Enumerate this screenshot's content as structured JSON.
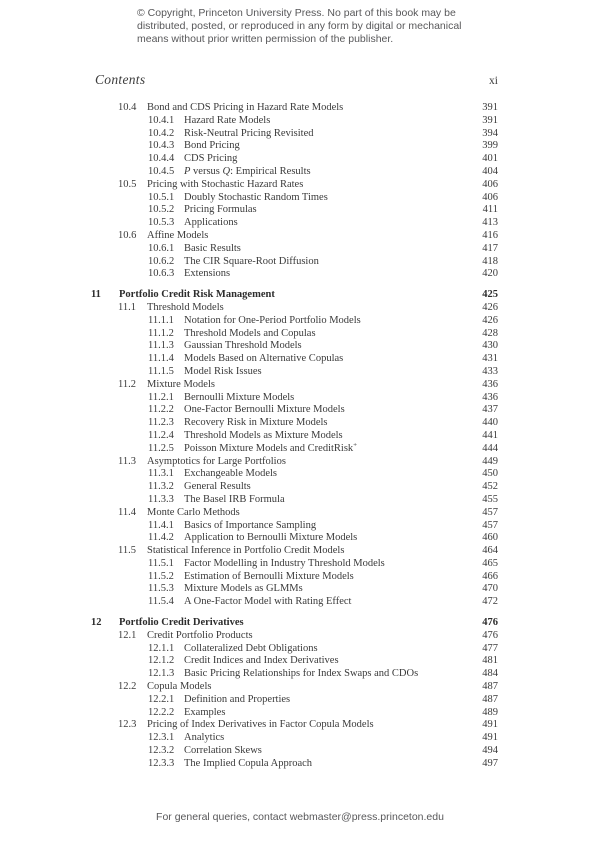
{
  "copyright_notice": "© Copyright, Princeton University Press. No part of this book may be\ndistributed, posted, or reproduced in any form by digital or mechanical\nmeans without prior written permission of the publisher.",
  "header": {
    "title": "Contents",
    "page_number": "xi"
  },
  "footer": {
    "text": "For general queries, contact webmaster@press.princeton.edu"
  },
  "toc": {
    "entries": [
      {
        "level": "section",
        "number": "10.4",
        "title": "Bond and CDS Pricing in Hazard Rate Models",
        "page": "391"
      },
      {
        "level": "subsection",
        "number": "10.4.1",
        "title": "Hazard Rate Models",
        "page": "391"
      },
      {
        "level": "subsection",
        "number": "10.4.2",
        "title": "Risk-Neutral Pricing Revisited",
        "page": "394"
      },
      {
        "level": "subsection",
        "number": "10.4.3",
        "title": "Bond Pricing",
        "page": "399"
      },
      {
        "level": "subsection",
        "number": "10.4.4",
        "title": "CDS Pricing",
        "page": "401"
      },
      {
        "level": "subsection",
        "number": "10.4.5",
        "title": "P versus Q: Empirical Results",
        "page": "404",
        "title_runs": [
          {
            "text": "P",
            "italic": true
          },
          {
            "text": " versus ",
            "italic": false
          },
          {
            "text": "Q",
            "italic": true
          },
          {
            "text": ": Empirical Results",
            "italic": false
          }
        ]
      },
      {
        "level": "section",
        "number": "10.5",
        "title": "Pricing with Stochastic Hazard Rates",
        "page": "406"
      },
      {
        "level": "subsection",
        "number": "10.5.1",
        "title": "Doubly Stochastic Random Times",
        "page": "406"
      },
      {
        "level": "subsection",
        "number": "10.5.2",
        "title": "Pricing Formulas",
        "page": "411"
      },
      {
        "level": "subsection",
        "number": "10.5.3",
        "title": "Applications",
        "page": "413"
      },
      {
        "level": "section",
        "number": "10.6",
        "title": "Affine Models",
        "page": "416"
      },
      {
        "level": "subsection",
        "number": "10.6.1",
        "title": "Basic Results",
        "page": "417"
      },
      {
        "level": "subsection",
        "number": "10.6.2",
        "title": "The CIR Square-Root Diffusion",
        "page": "418"
      },
      {
        "level": "subsection",
        "number": "10.6.3",
        "title": "Extensions",
        "page": "420"
      },
      {
        "level": "chapter",
        "number": "11",
        "title": "Portfolio Credit Risk Management",
        "page": "425",
        "gap_before": true
      },
      {
        "level": "section",
        "number": "11.1",
        "title": "Threshold Models",
        "page": "426"
      },
      {
        "level": "subsection",
        "number": "11.1.1",
        "title": "Notation for One-Period Portfolio Models",
        "page": "426"
      },
      {
        "level": "subsection",
        "number": "11.1.2",
        "title": "Threshold Models and Copulas",
        "page": "428"
      },
      {
        "level": "subsection",
        "number": "11.1.3",
        "title": "Gaussian Threshold Models",
        "page": "430"
      },
      {
        "level": "subsection",
        "number": "11.1.4",
        "title": "Models Based on Alternative Copulas",
        "page": "431"
      },
      {
        "level": "subsection",
        "number": "11.1.5",
        "title": "Model Risk Issues",
        "page": "433"
      },
      {
        "level": "section",
        "number": "11.2",
        "title": "Mixture Models",
        "page": "436"
      },
      {
        "level": "subsection",
        "number": "11.2.1",
        "title": "Bernoulli Mixture Models",
        "page": "436"
      },
      {
        "level": "subsection",
        "number": "11.2.2",
        "title": "One-Factor Bernoulli Mixture Models",
        "page": "437"
      },
      {
        "level": "subsection",
        "number": "11.2.3",
        "title": "Recovery Risk in Mixture Models",
        "page": "440"
      },
      {
        "level": "subsection",
        "number": "11.2.4",
        "title": "Threshold Models as Mixture Models",
        "page": "441"
      },
      {
        "level": "subsection",
        "number": "11.2.5",
        "title": "Poisson Mixture Models and CreditRisk+",
        "page": "444",
        "title_runs": [
          {
            "text": "Poisson Mixture Models and CreditRisk",
            "italic": false
          },
          {
            "text": "+",
            "sup": true
          }
        ]
      },
      {
        "level": "section",
        "number": "11.3",
        "title": "Asymptotics for Large Portfolios",
        "page": "449"
      },
      {
        "level": "subsection",
        "number": "11.3.1",
        "title": "Exchangeable Models",
        "page": "450"
      },
      {
        "level": "subsection",
        "number": "11.3.2",
        "title": "General Results",
        "page": "452"
      },
      {
        "level": "subsection",
        "number": "11.3.3",
        "title": "The Basel IRB Formula",
        "page": "455"
      },
      {
        "level": "section",
        "number": "11.4",
        "title": "Monte Carlo Methods",
        "page": "457"
      },
      {
        "level": "subsection",
        "number": "11.4.1",
        "title": "Basics of Importance Sampling",
        "page": "457"
      },
      {
        "level": "subsection",
        "number": "11.4.2",
        "title": "Application to Bernoulli Mixture Models",
        "page": "460"
      },
      {
        "level": "section",
        "number": "11.5",
        "title": "Statistical Inference in Portfolio Credit Models",
        "page": "464"
      },
      {
        "level": "subsection",
        "number": "11.5.1",
        "title": "Factor Modelling in Industry Threshold Models",
        "page": "465"
      },
      {
        "level": "subsection",
        "number": "11.5.2",
        "title": "Estimation of Bernoulli Mixture Models",
        "page": "466"
      },
      {
        "level": "subsection",
        "number": "11.5.3",
        "title": "Mixture Models as GLMMs",
        "page": "470"
      },
      {
        "level": "subsection",
        "number": "11.5.4",
        "title": "A One-Factor Model with Rating Effect",
        "page": "472"
      },
      {
        "level": "chapter",
        "number": "12",
        "title": "Portfolio Credit Derivatives",
        "page": "476",
        "gap_before": true
      },
      {
        "level": "section",
        "number": "12.1",
        "title": "Credit Portfolio Products",
        "page": "476"
      },
      {
        "level": "subsection",
        "number": "12.1.1",
        "title": "Collateralized Debt Obligations",
        "page": "477"
      },
      {
        "level": "subsection",
        "number": "12.1.2",
        "title": "Credit Indices and Index Derivatives",
        "page": "481"
      },
      {
        "level": "subsection",
        "number": "12.1.3",
        "title": "Basic Pricing Relationships for Index Swaps and CDOs",
        "page": "484"
      },
      {
        "level": "section",
        "number": "12.2",
        "title": "Copula Models",
        "page": "487"
      },
      {
        "level": "subsection",
        "number": "12.2.1",
        "title": "Definition and Properties",
        "page": "487"
      },
      {
        "level": "subsection",
        "number": "12.2.2",
        "title": "Examples",
        "page": "489"
      },
      {
        "level": "section",
        "number": "12.3",
        "title": "Pricing of Index Derivatives in Factor Copula Models",
        "page": "491"
      },
      {
        "level": "subsection",
        "number": "12.3.1",
        "title": "Analytics",
        "page": "491"
      },
      {
        "level": "subsection",
        "number": "12.3.2",
        "title": "Correlation Skews",
        "page": "494"
      },
      {
        "level": "subsection",
        "number": "12.3.3",
        "title": "The Implied Copula Approach",
        "page": "497"
      }
    ]
  }
}
